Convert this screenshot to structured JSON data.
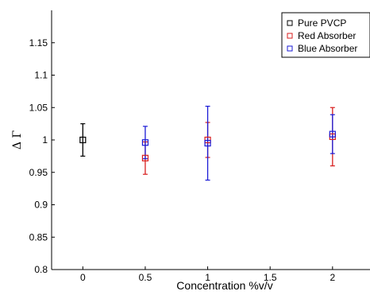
{
  "chart_data": {
    "type": "scatter",
    "xlabel": "Concentration %v/v",
    "ylabel": "Δ Γ",
    "xlim": [
      -0.25,
      2.3
    ],
    "ylim": [
      0.8,
      1.2
    ],
    "x_ticks": [
      0,
      0.5,
      1,
      1.5,
      2
    ],
    "x_tick_labels": [
      "0",
      "0.5",
      "1",
      "1.5",
      "2"
    ],
    "y_ticks": [
      0.8,
      0.85,
      0.9,
      0.95,
      1,
      1.05,
      1.1,
      1.15
    ],
    "y_tick_labels": [
      "0.8",
      "0.85",
      "0.9",
      "0.95",
      "1",
      "1.05",
      "1.1",
      "1.15"
    ],
    "grid": false,
    "legend_position": "top-right",
    "series": [
      {
        "name": "Pure PVCP",
        "color": "#000000",
        "marker": "open-square",
        "points": [
          {
            "x": 0,
            "y": 1.0,
            "err": 0.025
          }
        ]
      },
      {
        "name": "Red Absorber",
        "color": "#d81e1e",
        "marker": "open-square",
        "points": [
          {
            "x": 0.5,
            "y": 0.972,
            "err": 0.025
          },
          {
            "x": 1,
            "y": 1.0,
            "err": 0.027
          },
          {
            "x": 2,
            "y": 1.005,
            "err": 0.045
          }
        ]
      },
      {
        "name": "Blue Absorber",
        "color": "#1a1ad6",
        "marker": "open-square",
        "points": [
          {
            "x": 0.5,
            "y": 0.996,
            "err": 0.025
          },
          {
            "x": 1,
            "y": 0.995,
            "err": 0.057
          },
          {
            "x": 2,
            "y": 1.009,
            "err": 0.03
          }
        ]
      }
    ]
  }
}
